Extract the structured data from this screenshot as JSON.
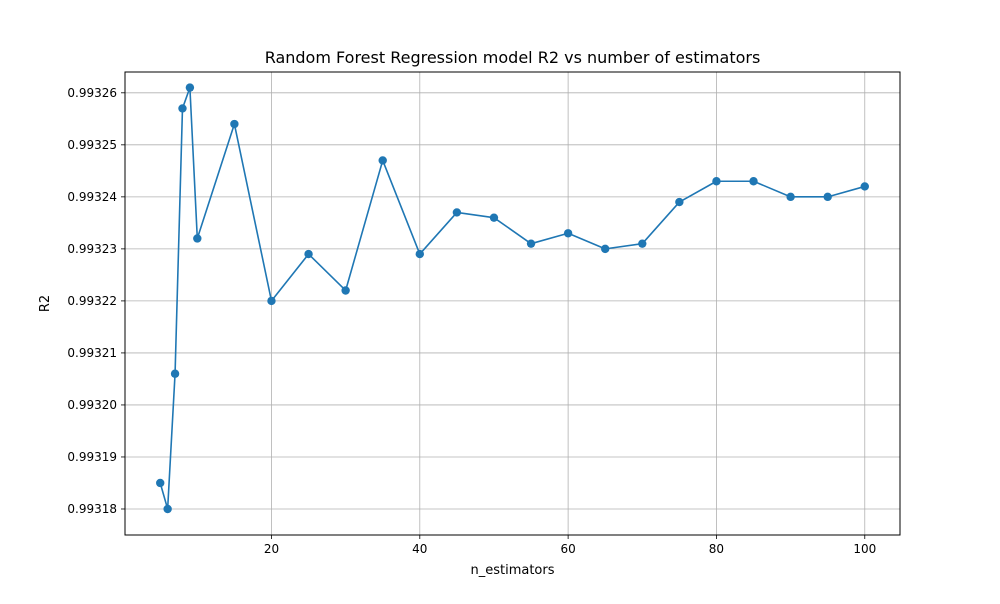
{
  "chart_data": {
    "type": "line",
    "title": "Random Forest Regression model R2 vs number of estimators",
    "xlabel": "n_estimators",
    "ylabel": "R2",
    "xlim": [
      0.25,
      104.75
    ],
    "ylim": [
      0.993175,
      0.993264
    ],
    "xticks": [
      20,
      40,
      60,
      80,
      100
    ],
    "xtick_labels": [
      "20",
      "40",
      "60",
      "80",
      "100"
    ],
    "yticks": [
      0.99318,
      0.99319,
      0.9932,
      0.99321,
      0.99322,
      0.99323,
      0.99324,
      0.99325,
      0.99326
    ],
    "ytick_labels": [
      "0.99318",
      "0.99319",
      "0.99320",
      "0.99321",
      "0.99322",
      "0.99323",
      "0.99324",
      "0.99325",
      "0.99326"
    ],
    "grid": true,
    "series": [
      {
        "color": "#1f77b4",
        "marker": "circle",
        "x": [
          5,
          6,
          7,
          8,
          9,
          10,
          15,
          20,
          25,
          30,
          35,
          40,
          45,
          50,
          55,
          60,
          65,
          70,
          75,
          80,
          85,
          90,
          95,
          100
        ],
        "y": [
          0.993185,
          0.99318,
          0.993206,
          0.993257,
          0.993261,
          0.993232,
          0.993254,
          0.99322,
          0.993229,
          0.993222,
          0.993247,
          0.993229,
          0.993237,
          0.993236,
          0.993231,
          0.993233,
          0.99323,
          0.993231,
          0.993239,
          0.993243,
          0.993243,
          0.99324,
          0.99324,
          0.993242
        ]
      }
    ]
  }
}
